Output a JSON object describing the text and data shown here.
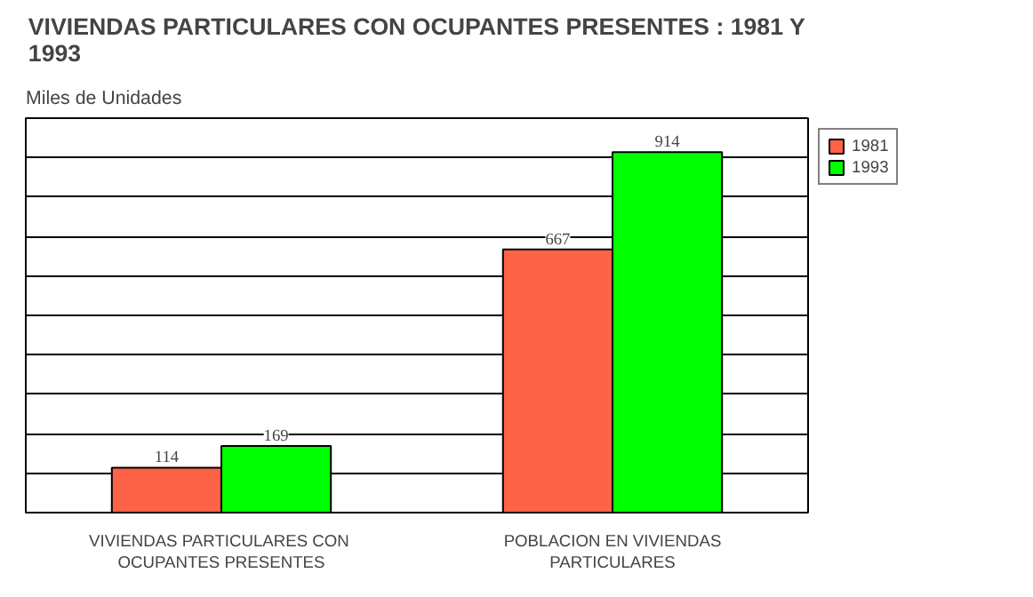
{
  "chart_data": {
    "type": "bar",
    "title": "VIVIENDAS PARTICULARES CON OCUPANTES PRESENTES : 1981 Y 1993",
    "ylabel": "Miles de Unidades",
    "categories": [
      "VIVIENDAS PARTICULARES  CON\nOCUPANTES PRESENTES",
      "POBLACION EN VIVIENDAS\nPARTICULARES"
    ],
    "series": [
      {
        "name": "1981",
        "color": "#ff6347",
        "values": [
          114,
          667
        ]
      },
      {
        "name": "1993",
        "color": "#00ff00",
        "values": [
          169,
          914
        ]
      }
    ],
    "ylim": [
      0,
      1000
    ],
    "yticks": [
      {
        "value": 0,
        "label": null
      },
      {
        "value": 100,
        "label": null
      },
      {
        "value": 200,
        "label": null
      },
      {
        "value": 300,
        "label": null
      },
      {
        "value": 400,
        "label": null
      },
      {
        "value": 500,
        "label": null
      },
      {
        "value": 600,
        "label": null
      },
      {
        "value": 700,
        "label": null
      },
      {
        "value": 800,
        "label": null
      },
      {
        "value": 900,
        "label": null
      },
      {
        "value": 1000,
        "label": null
      }
    ],
    "tick_labels": "x",
    "grid": "y",
    "legend": "top right",
    "data_labels": true
  }
}
